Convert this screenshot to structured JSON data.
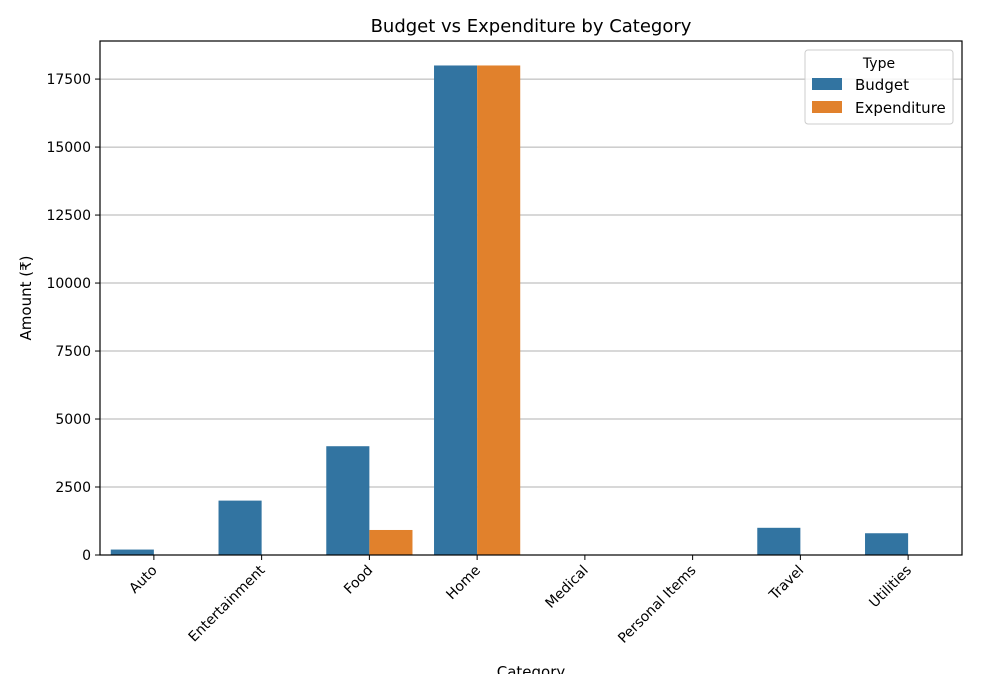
{
  "chart_data": {
    "type": "bar",
    "title": "Budget vs Expenditure by Category",
    "xlabel": "Category",
    "ylabel": "Amount (₹)",
    "ylim": [
      0,
      18900
    ],
    "yticks": [
      0,
      2500,
      5000,
      7500,
      10000,
      12500,
      15000,
      17500
    ],
    "grid": "horizontal",
    "legend_position": "top-right",
    "legend_title": "Type",
    "categories": [
      "Auto",
      "Entertainment",
      "Food",
      "Home",
      "Medical",
      "Personal Items",
      "Travel",
      "Utilities"
    ],
    "series": [
      {
        "name": "Budget",
        "color": "#3274a1",
        "values": [
          200,
          2000,
          4000,
          18000,
          0,
          0,
          1000,
          800
        ]
      },
      {
        "name": "Expenditure",
        "color": "#e1812c",
        "values": [
          0,
          0,
          920,
          18000,
          0,
          0,
          0,
          0
        ]
      }
    ]
  }
}
